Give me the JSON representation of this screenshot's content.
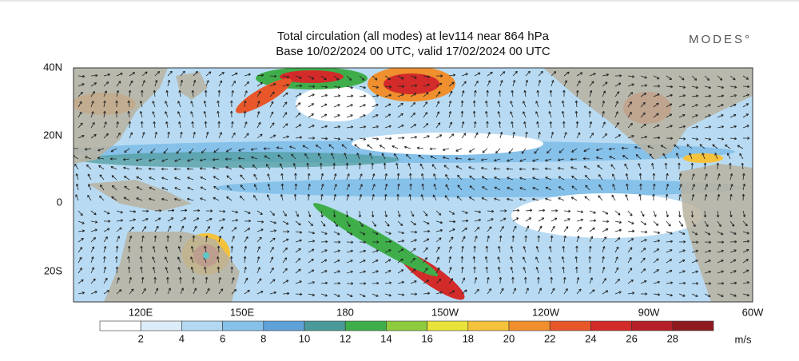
{
  "header": {
    "title": "Total circulation (all modes) at lev114 near 864 hPa",
    "subtitle": "Base 10/02/2024 00 UTC, valid 17/02/2024 00 UTC",
    "logo": "MODES°"
  },
  "map": {
    "lat_labels": [
      "40N",
      "20N",
      "0",
      "20S"
    ],
    "lon_labels": [
      "120E",
      "150E",
      "180",
      "150W",
      "120W",
      "90W",
      "60W"
    ]
  },
  "colorbar": {
    "labels": [
      2,
      4,
      6,
      8,
      10,
      12,
      14,
      16,
      18,
      20,
      22,
      24,
      26,
      28
    ],
    "unit": "m/s",
    "colors": [
      "#ffffff",
      "#dcecf8",
      "#b3d9f2",
      "#86c1ea",
      "#5ea2d9",
      "#4b9a9a",
      "#3fae4a",
      "#8fcb3f",
      "#e8e33a",
      "#f5c23b",
      "#f08f2e",
      "#e8572a",
      "#d32b2a",
      "#b51f27",
      "#8e1a1f"
    ]
  }
}
